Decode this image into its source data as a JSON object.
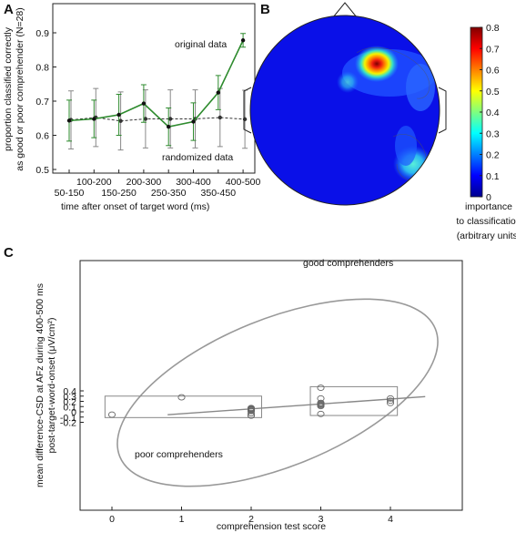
{
  "panels": {
    "a": "A",
    "b": "B",
    "c": "C"
  },
  "chart_data": [
    {
      "type": "line",
      "panel": "A",
      "ylabel_lines": [
        "proportion classified correctly",
        "as good or poor comprehender (N=28)"
      ],
      "xlabel": "time after onset of target word (ms)",
      "ylim": [
        0.5,
        0.9
      ],
      "yticks": [
        "0.5",
        "0.6",
        "0.7",
        "0.8",
        "0.9"
      ],
      "categories": [
        "50-150",
        "100-200",
        "150-250",
        "200-300",
        "250-350",
        "300-400",
        "350-450",
        "400-500"
      ],
      "series": [
        {
          "name": "original data",
          "color": "#2e8b2e",
          "values": [
            0.643,
            0.648,
            0.66,
            0.693,
            0.625,
            0.64,
            0.725,
            0.878
          ],
          "err": [
            0.06,
            0.055,
            0.06,
            0.055,
            0.055,
            0.055,
            0.05,
            0.02
          ]
        },
        {
          "name": "randomized data",
          "color": "#333333",
          "values": [
            0.645,
            0.652,
            0.642,
            0.648,
            0.648,
            0.648,
            0.652,
            0.647
          ],
          "err": [
            0.085,
            0.085,
            0.085,
            0.085,
            0.085,
            0.085,
            0.085,
            0.085
          ]
        }
      ]
    },
    {
      "type": "heatmap",
      "panel": "B",
      "colorbar_ticks": [
        "0",
        "0.1",
        "0.2",
        "0.3",
        "0.4",
        "0.5",
        "0.6",
        "0.7",
        "0.8"
      ],
      "colorbar_range": [
        0,
        0.8
      ],
      "colorbar_label_lines": [
        "importance",
        "to classification",
        "(arbitrary units)"
      ]
    },
    {
      "type": "scatter",
      "panel": "C",
      "xlabel": "comprehension test score",
      "ylabel_lines": [
        "mean difference-CSD at AFz during 400-500 ms",
        "post-target-word-onset (μV/cm²)"
      ],
      "xlim": [
        -0.5,
        5
      ],
      "ylim": [
        -0.27,
        0.49
      ],
      "xticks": [
        "0",
        "1",
        "2",
        "3",
        "4"
      ],
      "yticks": [
        "-0.2",
        "-0.1",
        "0",
        "0.1",
        "0.2",
        "0.3",
        "0.4"
      ],
      "points": [
        [
          0,
          -0.053
        ],
        [
          1,
          0.278
        ],
        [
          2,
          0.072
        ],
        [
          2,
          0.062
        ],
        [
          2,
          0.052
        ],
        [
          2,
          0.042
        ],
        [
          2,
          0.028
        ],
        [
          2,
          0.015
        ],
        [
          2,
          -0.028
        ],
        [
          2,
          -0.07
        ],
        [
          2,
          -0.073
        ],
        [
          3,
          0.46
        ],
        [
          3,
          0.255
        ],
        [
          3,
          0.17
        ],
        [
          3,
          0.155
        ],
        [
          3,
          0.14
        ],
        [
          3,
          0.125
        ],
        [
          3,
          0.11
        ],
        [
          3,
          -0.04
        ],
        [
          4,
          0.255
        ],
        [
          4,
          0.212
        ],
        [
          4,
          0.168
        ]
      ],
      "regression": {
        "x": [
          0.8,
          4.5
        ],
        "y": [
          -0.055,
          0.29
        ]
      },
      "groups": [
        {
          "label": "poor comprehenders",
          "x": [
            -0.1,
            2.15
          ],
          "y": [
            -0.11,
            0.3
          ]
        },
        {
          "label": "good comprehenders",
          "x": [
            2.85,
            4.1
          ],
          "y": [
            -0.07,
            0.48
          ]
        }
      ]
    }
  ]
}
